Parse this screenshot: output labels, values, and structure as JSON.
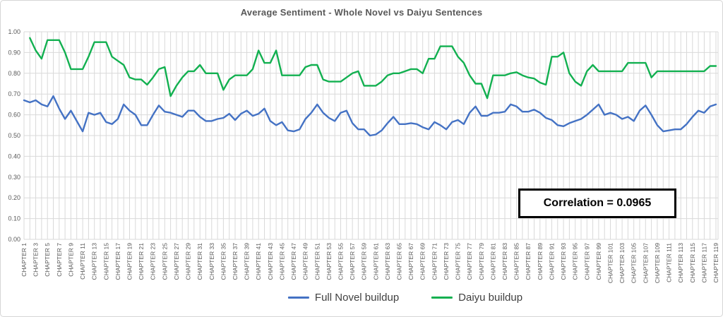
{
  "title": "Average Sentiment - Whole Novel vs Daiyu Sentences",
  "annotation": {
    "text": "Correlation = 0.0965"
  },
  "legend": [
    {
      "label": "Full Novel buildup",
      "color": "#4472C4"
    },
    {
      "label": "Daiyu buildup",
      "color": "#12B050"
    }
  ],
  "colors": {
    "gridline": "#D9D9D9",
    "axis_text": "#595959",
    "title_text": "#595959",
    "legend_text": "#404040",
    "annotation_border": "#000000",
    "background": "#FFFFFF"
  },
  "chart_data": {
    "type": "line",
    "title": "Average Sentiment - Whole Novel vs Daiyu Sentences",
    "xlabel": "",
    "ylabel": "",
    "ylim": [
      0.0,
      1.0
    ],
    "y_ticks": [
      "0.00",
      "0.10",
      "0.20",
      "0.30",
      "0.40",
      "0.50",
      "0.60",
      "0.70",
      "0.80",
      "0.90",
      "1.00"
    ],
    "x_range": [
      1,
      119
    ],
    "grid": true,
    "legend_position": "bottom",
    "x_tick_labels": [
      "CHAPTER 1",
      "CHAPTER 3",
      "CHAPTER 5",
      "CHAPTER 7",
      "CHAPTER 9",
      "CHAPTER 11",
      "CHAPTER 13",
      "CHAPTER 15",
      "CHAPTER 17",
      "CHAPTER 19",
      "CHAPTER 21",
      "CHAPTER 23",
      "CHAPTER 25",
      "CHAPTER 27",
      "CHAPTER 29",
      "CHAPTER 31",
      "CHAPTER 33",
      "CHAPTER 35",
      "CHAPTER 37",
      "CHAPTER 39",
      "CHAPTER 41",
      "CHAPTER 43",
      "CHAPTER 45",
      "CHAPTER 47",
      "CHAPTER 49",
      "CHAPTER 51",
      "CHAPTER 53",
      "CHAPTER 55",
      "CHAPTER 57",
      "CHAPTER 59",
      "CHAPTER 61",
      "CHAPTER 63",
      "CHAPTER 65",
      "CHAPTER 67",
      "CHAPTER 69",
      "CHAPTER 71",
      "CHAPTER 73",
      "CHAPTER 75",
      "CHAPTER 77",
      "CHAPTER 79",
      "CHAPTER 81",
      "CHAPTER 83",
      "CHAPTER 85",
      "CHAPTER 87",
      "CHAPTER 89",
      "CHAPTER 91",
      "CHAPTER 93",
      "CHAPTER 95",
      "CHAPTER 97",
      "CHAPTER 99",
      "CHAPTER 101",
      "CHAPTER 103",
      "CHAPTER 105",
      "CHAPTER 107",
      "CHAPTER 109",
      "CHAPTER 111",
      "CHAPTER 113",
      "CHAPTER 115",
      "CHAPTER 117",
      "CHAPTER 119"
    ],
    "series": [
      {
        "name": "Full Novel buildup",
        "color": "#4472C4",
        "values": [
          0.67,
          0.66,
          0.67,
          0.65,
          0.64,
          0.69,
          0.63,
          0.58,
          0.62,
          0.57,
          0.52,
          0.61,
          0.6,
          0.61,
          0.565,
          0.555,
          0.58,
          0.65,
          0.62,
          0.6,
          0.55,
          0.55,
          0.6,
          0.645,
          0.615,
          0.61,
          0.6,
          0.59,
          0.62,
          0.62,
          0.59,
          0.57,
          0.57,
          0.58,
          0.585,
          0.605,
          0.575,
          0.605,
          0.62,
          0.595,
          0.605,
          0.63,
          0.57,
          0.55,
          0.565,
          0.525,
          0.52,
          0.53,
          0.58,
          0.61,
          0.65,
          0.61,
          0.585,
          0.57,
          0.61,
          0.62,
          0.56,
          0.53,
          0.53,
          0.5,
          0.505,
          0.525,
          0.56,
          0.59,
          0.555,
          0.555,
          0.56,
          0.555,
          0.54,
          0.53,
          0.565,
          0.55,
          0.53,
          0.565,
          0.575,
          0.555,
          0.61,
          0.64,
          0.595,
          0.595,
          0.61,
          0.61,
          0.615,
          0.65,
          0.64,
          0.615,
          0.615,
          0.625,
          0.61,
          0.585,
          0.575,
          0.55,
          0.545,
          0.56,
          0.57,
          0.58,
          0.6,
          0.625,
          0.65,
          0.6,
          0.61,
          0.6,
          0.58,
          0.59,
          0.57,
          0.62,
          0.645,
          0.6,
          0.55,
          0.52,
          0.525,
          0.53,
          0.53,
          0.555,
          0.59,
          0.62,
          0.61,
          0.64,
          0.65
        ]
      },
      {
        "name": "Daiyu buildup",
        "color": "#12B050",
        "values": [
          null,
          0.97,
          0.91,
          0.87,
          0.96,
          0.96,
          0.96,
          0.9,
          0.82,
          0.82,
          0.82,
          0.88,
          0.95,
          0.95,
          0.95,
          0.88,
          0.86,
          0.84,
          0.78,
          0.77,
          0.77,
          0.745,
          0.78,
          0.82,
          0.83,
          0.69,
          0.74,
          0.78,
          0.81,
          0.81,
          0.84,
          0.8,
          0.8,
          0.8,
          0.72,
          0.77,
          0.79,
          0.79,
          0.79,
          0.82,
          0.91,
          0.85,
          0.85,
          0.91,
          0.79,
          0.79,
          0.79,
          0.79,
          0.83,
          0.84,
          0.84,
          0.77,
          0.76,
          0.76,
          0.76,
          0.78,
          0.8,
          0.81,
          0.74,
          0.74,
          0.74,
          0.76,
          0.79,
          0.8,
          0.8,
          0.81,
          0.82,
          0.82,
          0.8,
          0.87,
          0.87,
          0.93,
          0.93,
          0.93,
          0.88,
          0.85,
          0.79,
          0.75,
          0.75,
          0.68,
          0.79,
          0.79,
          0.79,
          0.8,
          0.805,
          0.79,
          0.78,
          0.775,
          0.755,
          0.745,
          0.88,
          0.88,
          0.9,
          0.8,
          0.76,
          0.74,
          0.81,
          0.84,
          0.81,
          0.81,
          0.81,
          0.81,
          0.81,
          0.85,
          0.85,
          0.85,
          0.85,
          0.78,
          0.81,
          0.81,
          0.81,
          0.81,
          0.81,
          0.81,
          0.81,
          0.81,
          0.81,
          0.835,
          0.835
        ]
      }
    ]
  }
}
